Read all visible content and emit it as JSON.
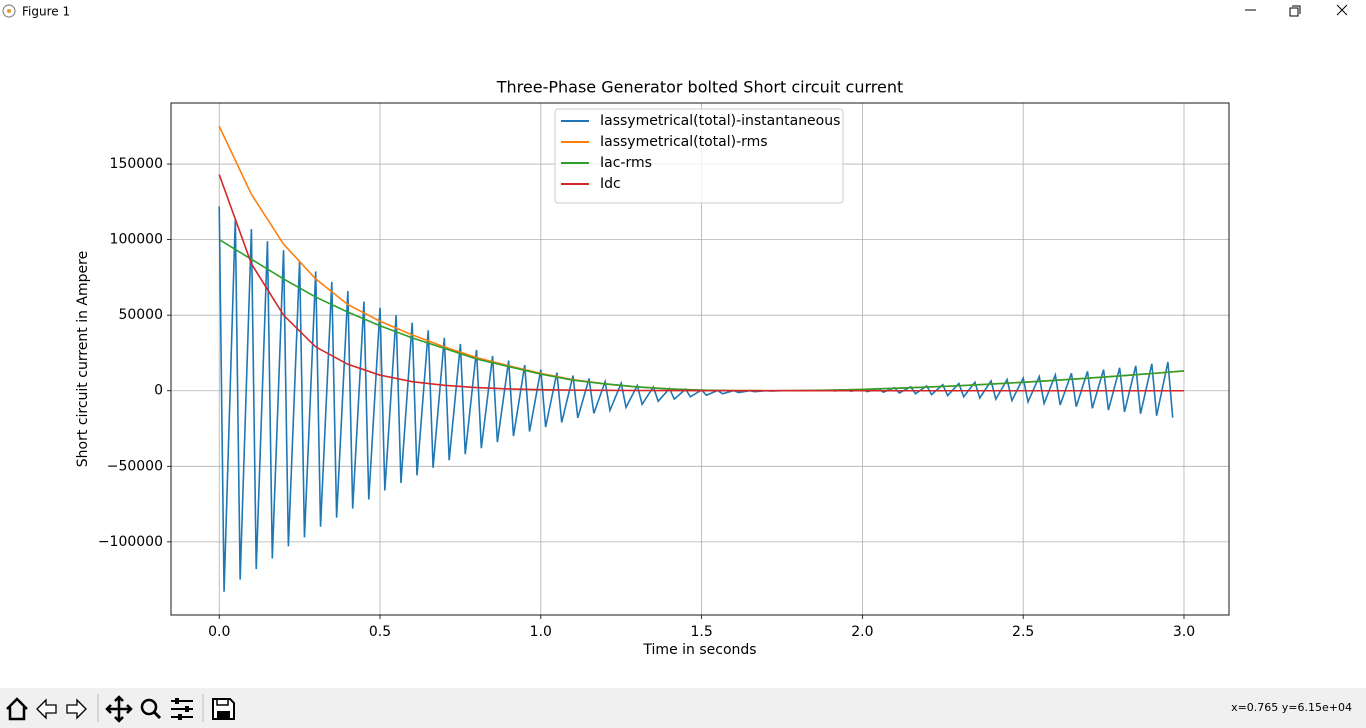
{
  "window": {
    "title": "Figure 1"
  },
  "status": "x=0.765 y=6.15e+04",
  "chart_data": {
    "type": "line",
    "title": "Three-Phase Generator bolted Short circuit current",
    "xlabel": "Time in seconds",
    "ylabel": "Short circuit current in Ampere",
    "x": [
      0,
      0.1,
      0.2,
      0.3,
      0.4,
      0.5,
      0.6,
      0.7,
      0.8,
      0.9,
      1,
      1.1,
      1.2,
      1.3,
      1.4,
      1.5,
      1.6,
      1.7,
      1.8,
      1.9,
      2,
      2.1,
      2.2,
      2.3,
      2.4,
      2.5,
      2.6,
      2.7,
      2.8,
      2.9,
      3
    ],
    "series": [
      {
        "name": "Iassymetrical(total)-instantaneous",
        "color": "#1f77b4",
        "x": [
          0,
          0.015,
          0.05,
          0.065,
          0.1,
          0.115,
          0.15,
          0.165,
          0.2,
          0.215,
          0.25,
          0.265,
          0.3,
          0.315,
          0.35,
          0.365,
          0.4,
          0.415,
          0.45,
          0.465,
          0.5,
          0.515,
          0.55,
          0.565,
          0.6,
          0.615,
          0.65,
          0.665,
          0.7,
          0.715,
          0.75,
          0.765,
          0.8,
          0.815,
          0.85,
          0.865,
          0.9,
          0.915,
          0.95,
          0.965,
          1,
          1.015,
          1.05,
          1.065,
          1.1,
          1.115,
          1.15,
          1.165,
          1.2,
          1.215,
          1.25,
          1.265,
          1.3,
          1.315,
          1.35,
          1.365,
          1.4,
          1.415,
          1.45,
          1.465,
          1.5,
          1.515,
          1.55,
          1.565,
          1.6,
          1.615,
          1.65,
          1.665,
          1.7,
          1.715,
          1.75,
          1.765,
          1.8,
          1.815,
          1.85,
          1.865,
          1.9,
          1.915,
          1.95,
          1.965,
          2,
          2.015,
          2.05,
          2.065,
          2.1,
          2.115,
          2.15,
          2.165,
          2.2,
          2.215,
          2.25,
          2.265,
          2.3,
          2.315,
          2.35,
          2.365,
          2.4,
          2.415,
          2.45,
          2.465,
          2.5,
          2.515,
          2.55,
          2.565,
          2.6,
          2.615,
          2.65,
          2.665,
          2.7,
          2.715,
          2.75,
          2.765,
          2.8,
          2.815,
          2.85,
          2.865,
          2.9,
          2.915,
          2.95,
          2.965
        ],
        "values": [
          122000,
          -133000,
          114000,
          -125000,
          107000,
          -118000,
          99000,
          -111000,
          93000,
          -103000,
          86000,
          -97000,
          79000,
          -90000,
          72000,
          -84000,
          66000,
          -78000,
          59000,
          -72000,
          55000,
          -66000,
          50000,
          -61000,
          45000,
          -56000,
          40000,
          -51000,
          35000,
          -46000,
          31000,
          -42000,
          27000,
          -38000,
          23000,
          -34000,
          20000,
          -30000,
          17000,
          -27000,
          14000,
          -24000,
          12000,
          -21000,
          10000,
          -18000,
          8000,
          -15000,
          6000,
          -13000,
          5000,
          -11000,
          3500,
          -9000,
          2500,
          -7000,
          1500,
          -5500,
          1000,
          -4000,
          500,
          -3000,
          200,
          -2000,
          100,
          -1200,
          0,
          -600,
          0,
          -200,
          0,
          0,
          0,
          0,
          100,
          0,
          300,
          -100,
          600,
          -300,
          1000,
          -600,
          1500,
          -1000,
          2000,
          -1500,
          2600,
          -2000,
          3200,
          -2600,
          4000,
          -3200,
          4800,
          -4000,
          5600,
          -4800,
          6500,
          -5600,
          7400,
          -6500,
          8400,
          -7400,
          9400,
          -8400,
          10500,
          -9400,
          11600,
          -10500,
          12800,
          -11600,
          14000,
          -12800,
          15200,
          -14000,
          16500,
          -15200,
          17800,
          -16500,
          19000,
          -17800
        ]
      },
      {
        "name": "Iassymetrical(total)-rms",
        "color": "#ff7f0e",
        "values": [
          175000,
          130000,
          97000,
          74000,
          57000,
          46000,
          37000,
          29000,
          22000,
          16500,
          11500,
          7300,
          4600,
          2500,
          1200,
          400,
          50,
          0,
          100,
          400,
          900,
          1600,
          2400,
          3300,
          4400,
          5600,
          6900,
          8300,
          9800,
          11400,
          13100
        ]
      },
      {
        "name": "Iac-rms",
        "color": "#2ca02c",
        "values": [
          100000,
          87000,
          74000,
          62000,
          52000,
          43000,
          35000,
          28000,
          21000,
          16000,
          11000,
          7000,
          4500,
          2500,
          1200,
          400,
          50,
          0,
          100,
          400,
          900,
          1600,
          2400,
          3300,
          4400,
          5600,
          6900,
          8300,
          9800,
          11400,
          13100
        ]
      },
      {
        "name": "Idc",
        "color": "#d62728",
        "values": [
          143000,
          84000,
          50000,
          29000,
          17500,
          10300,
          6000,
          3600,
          2100,
          1200,
          700,
          400,
          250,
          150,
          80,
          50,
          30,
          20,
          10,
          10,
          0,
          0,
          0,
          0,
          0,
          0,
          0,
          0,
          0,
          0,
          0
        ]
      }
    ],
    "xlim": [
      -0.15,
      3.14
    ],
    "ylim": [
      -148400,
      190400
    ],
    "xticks": [
      {
        "value": 0,
        "label": "0.0"
      },
      {
        "value": 0.5,
        "label": "0.5"
      },
      {
        "value": 1,
        "label": "1.0"
      },
      {
        "value": 1.5,
        "label": "1.5"
      },
      {
        "value": 2,
        "label": "2.0"
      },
      {
        "value": 2.5,
        "label": "2.5"
      },
      {
        "value": 3,
        "label": "3.0"
      }
    ],
    "yticks": [
      {
        "value": -100000,
        "label": "−100000"
      },
      {
        "value": -50000,
        "label": "−50000"
      },
      0,
      50000,
      100000,
      150000
    ],
    "grid": true,
    "legend": "upper center"
  }
}
